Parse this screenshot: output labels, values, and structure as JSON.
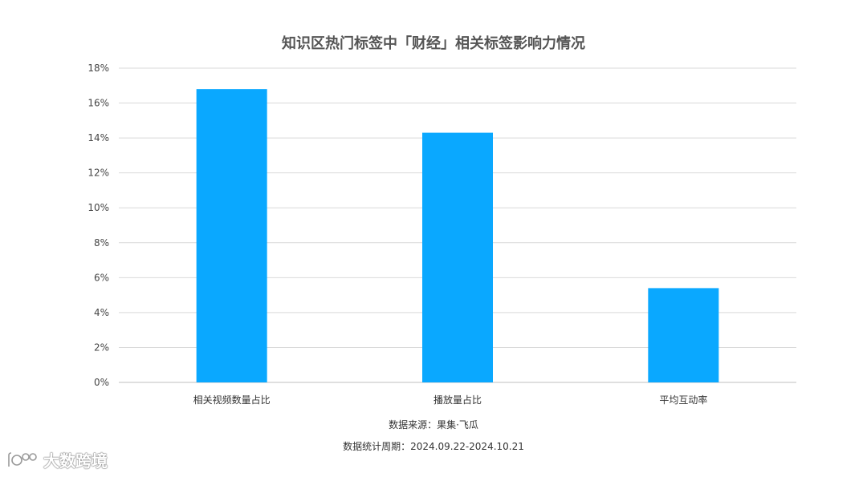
{
  "chart_data": {
    "type": "bar",
    "title": "知识区热门标签中「财经」相关标签影响力情况",
    "categories": [
      "相关视频数量占比",
      "播放量占比",
      "平均互动率"
    ],
    "values": [
      16.8,
      14.3,
      5.4
    ],
    "unit": "%",
    "ylim": [
      0,
      18
    ],
    "yticks": [
      0,
      2,
      4,
      6,
      8,
      10,
      12,
      14,
      16,
      18
    ],
    "grid": true,
    "legend": "none",
    "bar_color": "#0aa8ff"
  },
  "notes": {
    "source": "数据来源：果集·飞瓜",
    "period": "数据统计周期：2024.09.22-2024.10.21"
  },
  "watermark": {
    "text": "大数跨境"
  }
}
